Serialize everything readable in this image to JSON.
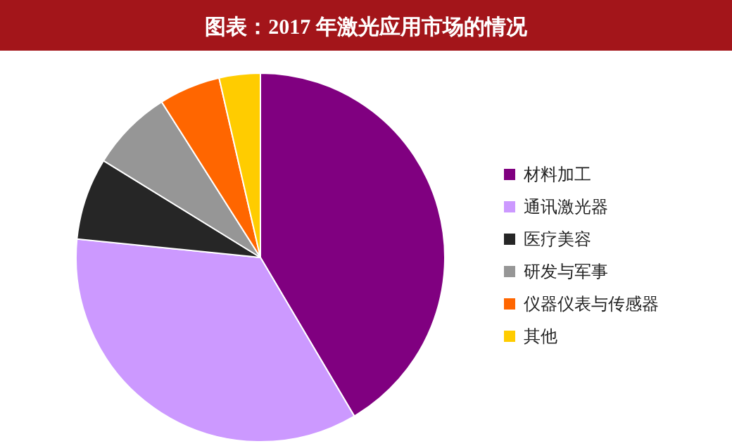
{
  "chart_data": {
    "type": "pie",
    "title": "图表：2017 年激光应用市场的情况",
    "categories": [
      "材料加工",
      "通讯激光器",
      "医疗美容",
      "研发与军事",
      "仪器仪表与传感器",
      "其他"
    ],
    "values": [
      41.5,
      35.1,
      7.2,
      7.2,
      5.4,
      3.6
    ],
    "colors": [
      "#800080",
      "#cc99ff",
      "#262626",
      "#969696",
      "#ff6600",
      "#ffcc00"
    ],
    "legend": "right"
  }
}
